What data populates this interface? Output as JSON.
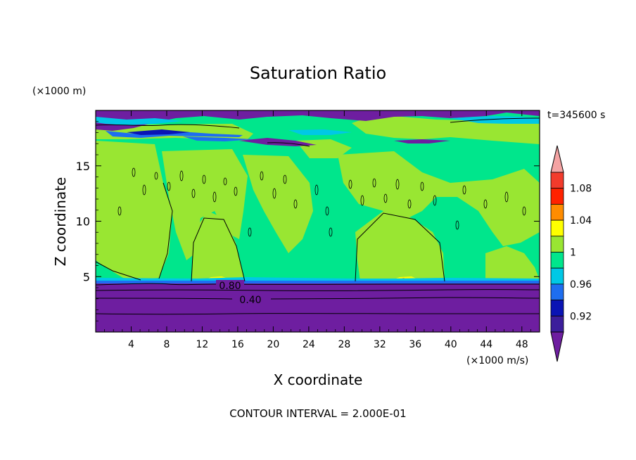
{
  "chart_data": {
    "type": "heatmap",
    "title": "Saturation Ratio",
    "xlabel": "X coordinate",
    "ylabel": "Z coordinate",
    "x_unit": "(×1000 m/s)",
    "y_unit": "(×1000 m)",
    "time_label": "t=345600 s",
    "footer": "CONTOUR INTERVAL = 2.000E-01",
    "xlim": [
      0,
      50
    ],
    "ylim": [
      0,
      20
    ],
    "x_ticks": [
      4,
      8,
      12,
      16,
      20,
      24,
      28,
      32,
      36,
      40,
      44,
      48
    ],
    "y_ticks": [
      5,
      10,
      15
    ],
    "contour_labels": [
      {
        "value": "0.80",
        "x": 14.5,
        "z": 4.2
      },
      {
        "value": "0.40",
        "x": 16.2,
        "z": 3.0
      }
    ],
    "colorbar": {
      "labels": [
        "1.08",
        "1.04",
        "1",
        "0.96",
        "0.92"
      ],
      "colors": [
        "#f4a3a3",
        "#f23b2c",
        "#ff2200",
        "#ff8c00",
        "#ffff00",
        "#99e632",
        "#00e68c",
        "#00c8e6",
        "#1e6ef0",
        "#0a14b4",
        "#3c1e9b",
        "#6e1ea0"
      ]
    }
  }
}
